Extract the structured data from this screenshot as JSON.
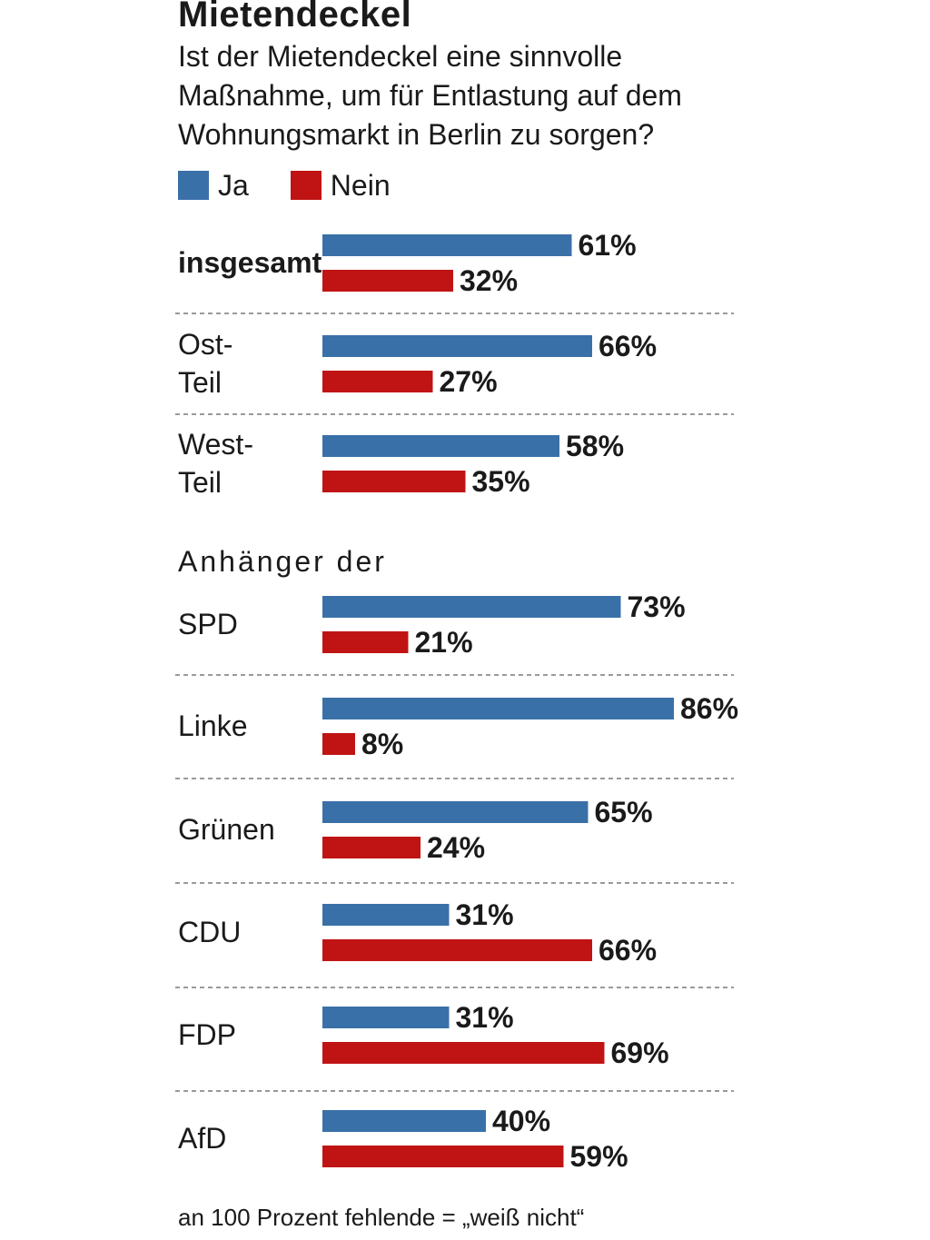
{
  "colors": {
    "ja": "#3a70a8",
    "nein": "#c01414",
    "divider": "#9a9a9a"
  },
  "chart_data": {
    "type": "bar",
    "orientation": "horizontal",
    "title": "Mietendeckel",
    "subtitle": [
      "Ist der Mietendeckel eine sinnvolle",
      "Maßnahme, um für Entlastung auf dem",
      "Wohnungsmarkt in Berlin zu sorgen?"
    ],
    "legend": [
      "Ja",
      "Nein"
    ],
    "legend_position": "top-left",
    "section_title": "Anhänger der",
    "footnote": "an 100 Prozent fehlende = „weiß nicht“",
    "unit": "%",
    "rows": [
      {
        "label": [
          "insgesamt"
        ],
        "bold": true,
        "ja": 61,
        "nein": 32
      },
      {
        "label": [
          "Ost-",
          "Teil"
        ],
        "bold": false,
        "ja": 66,
        "nein": 27
      },
      {
        "label": [
          "West-",
          "Teil"
        ],
        "bold": false,
        "ja": 58,
        "nein": 35
      },
      {
        "label": [
          "SPD"
        ],
        "bold": false,
        "ja": 73,
        "nein": 21
      },
      {
        "label": [
          "Linke"
        ],
        "bold": false,
        "ja": 86,
        "nein": 8
      },
      {
        "label": [
          "Grünen"
        ],
        "bold": false,
        "ja": 65,
        "nein": 24
      },
      {
        "label": [
          "CDU"
        ],
        "bold": false,
        "ja": 31,
        "nein": 66
      },
      {
        "label": [
          "FDP"
        ],
        "bold": false,
        "ja": 31,
        "nein": 69
      },
      {
        "label": [
          "AfD"
        ],
        "bold": false,
        "ja": 40,
        "nein": 59
      }
    ]
  }
}
